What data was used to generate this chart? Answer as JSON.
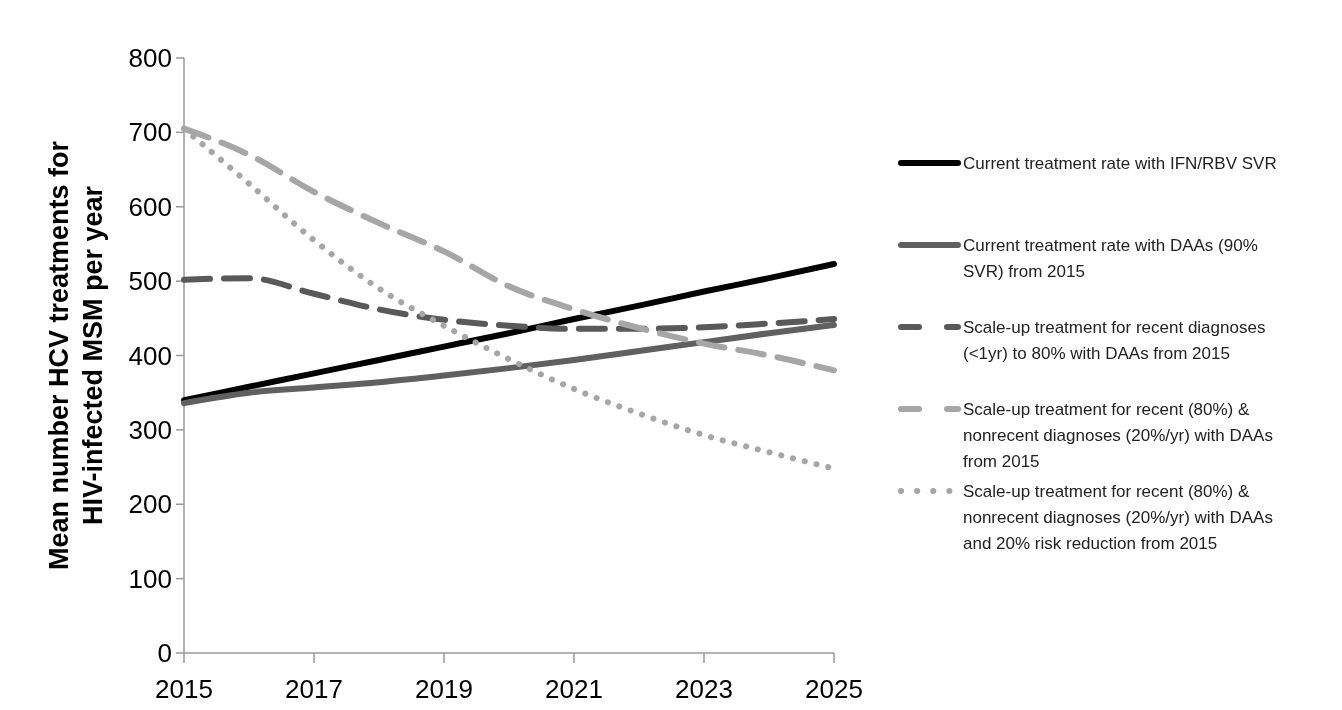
{
  "chart_data": {
    "type": "line",
    "ylabel": "Mean number HCV treatments for HIV-infected MSM per year",
    "x": [
      2015,
      2016,
      2017,
      2018,
      2019,
      2020,
      2021,
      2022,
      2023,
      2024,
      2025
    ],
    "xlim": [
      2015,
      2025
    ],
    "xticks": [
      2015,
      2017,
      2019,
      2021,
      2023,
      2025
    ],
    "ylim": [
      0,
      800
    ],
    "yticks": [
      0,
      100,
      200,
      300,
      400,
      500,
      600,
      700,
      800
    ],
    "grid": false,
    "legend": "right",
    "marker": "none",
    "series": [
      {
        "name": "Current treatment rate with IFN/RBV SVR",
        "color": "#000000",
        "line_style": "solid",
        "values": [
          340,
          358,
          376,
          394,
          412,
          430,
          449,
          467,
          486,
          504,
          523
        ]
      },
      {
        "name": "Current treatment rate with DAAs (90% SVR) from 2015",
        "color": "#606060",
        "line_style": "solid",
        "values": [
          336,
          350,
          357,
          364,
          373,
          383,
          394,
          406,
          418,
          430,
          441
        ]
      },
      {
        "name": "Scale-up treatment for recent diagnoses (<1yr) to 80% with DAAs from 2015",
        "color": "#595959",
        "line_style": "dashed",
        "values": [
          502,
          504,
          483,
          462,
          448,
          440,
          436,
          436,
          438,
          443,
          449
        ]
      },
      {
        "name": "Scale-up treatment for recent (80%) & nonrecent diagnoses (20%/yr) with DAAs from 2015",
        "color": "#a6a6a6",
        "line_style": "dashed",
        "values": [
          705,
          670,
          620,
          578,
          540,
          493,
          462,
          437,
          416,
          400,
          380
        ]
      },
      {
        "name": "Scale-up treatment for recent (80%) & nonrecent diagnoses (20%/yr) with DAAs and 20% risk reduction from 2015",
        "color": "#a6a6a6",
        "line_style": "dotted",
        "values": [
          705,
          631,
          555,
          490,
          440,
          395,
          355,
          322,
          293,
          270,
          248
        ]
      }
    ]
  }
}
